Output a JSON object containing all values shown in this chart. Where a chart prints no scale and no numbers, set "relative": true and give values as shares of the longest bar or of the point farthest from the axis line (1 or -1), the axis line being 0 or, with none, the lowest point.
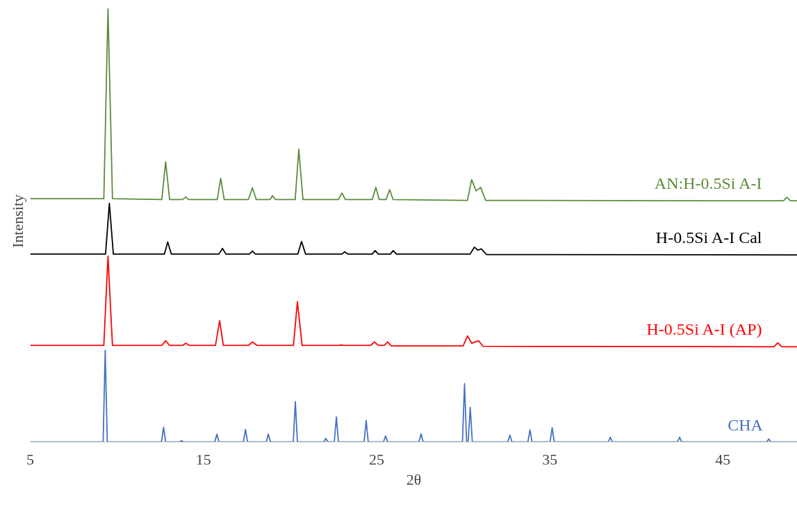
{
  "chart_data": {
    "type": "line",
    "xlabel": "2θ",
    "ylabel": "Intensity",
    "relative": true,
    "xlim": [
      5,
      49.3
    ],
    "xticks": [
      5,
      15,
      25,
      35,
      45
    ],
    "series": [
      {
        "name": "AN:H-0.5Si A-I",
        "color": "#5b8c3a",
        "x": [
          5,
          9.25,
          9.49,
          9.75,
          12.6,
          12.82,
          13.05,
          13.8,
          13.98,
          14.15,
          15.8,
          16.0,
          16.2,
          17.6,
          17.83,
          18.05,
          18.85,
          18.99,
          19.15,
          20.3,
          20.51,
          20.75,
          22.8,
          23.0,
          23.2,
          24.75,
          24.96,
          25.15,
          25.55,
          25.76,
          25.95,
          30.25,
          30.49,
          30.75,
          31.01,
          31.3,
          48.5,
          48.69,
          48.9,
          49.3
        ],
        "values": [
          0.562,
          0.562,
          1.0,
          0.562,
          0.56,
          0.647,
          0.56,
          0.56,
          0.566,
          0.56,
          0.56,
          0.609,
          0.56,
          0.56,
          0.587,
          0.56,
          0.56,
          0.569,
          0.56,
          0.56,
          0.676,
          0.56,
          0.56,
          0.575,
          0.56,
          0.56,
          0.588,
          0.56,
          0.56,
          0.583,
          0.56,
          0.558,
          0.606,
          0.58,
          0.588,
          0.558,
          0.557,
          0.565,
          0.557,
          0.557
        ]
      },
      {
        "name": "H-0.5Si A-I Cal",
        "color": "#000000",
        "x": [
          5,
          9.35,
          9.57,
          9.8,
          12.75,
          12.94,
          13.15,
          15.9,
          16.1,
          16.3,
          17.65,
          17.83,
          18.0,
          20.45,
          20.67,
          20.9,
          23.0,
          23.16,
          23.35,
          24.75,
          24.92,
          25.1,
          25.8,
          25.96,
          26.15,
          30.4,
          30.65,
          30.85,
          31.05,
          31.35,
          49.3
        ],
        "values": [
          0.434,
          0.434,
          0.551,
          0.434,
          0.434,
          0.462,
          0.434,
          0.434,
          0.447,
          0.434,
          0.434,
          0.441,
          0.434,
          0.434,
          0.463,
          0.434,
          0.434,
          0.439,
          0.434,
          0.434,
          0.442,
          0.434,
          0.434,
          0.442,
          0.434,
          0.434,
          0.45,
          0.443,
          0.446,
          0.433,
          0.432
        ]
      },
      {
        "name": "H-0.5Si A-I (AP)",
        "color": "#ff0000",
        "x": [
          5,
          9.25,
          9.49,
          9.75,
          12.6,
          12.82,
          13.05,
          13.8,
          13.98,
          14.2,
          15.7,
          15.94,
          16.15,
          17.6,
          17.83,
          18.1,
          20.2,
          20.43,
          20.7,
          22.8,
          22.96,
          23.15,
          24.65,
          24.88,
          25.1,
          25.45,
          25.64,
          25.85,
          30.0,
          30.25,
          30.5,
          30.89,
          31.15,
          47.95,
          48.17,
          48.4,
          49.3
        ],
        "values": [
          0.223,
          0.223,
          0.429,
          0.223,
          0.223,
          0.234,
          0.223,
          0.223,
          0.228,
          0.223,
          0.223,
          0.28,
          0.223,
          0.223,
          0.231,
          0.223,
          0.223,
          0.324,
          0.223,
          0.223,
          0.224,
          0.223,
          0.223,
          0.231,
          0.223,
          0.223,
          0.231,
          0.222,
          0.222,
          0.245,
          0.228,
          0.234,
          0.221,
          0.22,
          0.229,
          0.22,
          0.22
        ]
      },
      {
        "name": "CHA",
        "color": "#4472c4",
        "x": [
          5,
          9.21,
          9.33,
          9.45,
          12.58,
          12.7,
          12.82,
          13.62,
          13.74,
          13.86,
          15.66,
          15.78,
          15.9,
          17.31,
          17.43,
          17.55,
          18.63,
          18.75,
          18.87,
          20.19,
          20.31,
          20.43,
          21.95,
          22.07,
          22.19,
          22.56,
          22.68,
          22.8,
          24.28,
          24.4,
          24.52,
          25.4,
          25.52,
          25.64,
          27.45,
          27.57,
          27.69,
          29.96,
          30.08,
          30.2,
          30.29,
          30.41,
          30.53,
          32.58,
          32.7,
          32.82,
          33.74,
          33.86,
          33.98,
          35.02,
          35.14,
          35.26,
          38.38,
          38.5,
          38.62,
          42.38,
          42.5,
          42.62,
          47.53,
          47.65,
          47.77,
          49.3
        ],
        "values": [
          0,
          0,
          0.212,
          0,
          0,
          0.034,
          0,
          0,
          0.003,
          0,
          0,
          0.018,
          0,
          0,
          0.029,
          0,
          0,
          0.018,
          0,
          0,
          0.093,
          0,
          0,
          0.008,
          0,
          0,
          0.058,
          0,
          0,
          0.05,
          0,
          0,
          0.014,
          0,
          0,
          0.019,
          0,
          0,
          0.135,
          0,
          0,
          0.08,
          0,
          0,
          0.016,
          0,
          0,
          0.028,
          0,
          0,
          0.033,
          0,
          0,
          0.011,
          0,
          0,
          0.011,
          0,
          0,
          0.007,
          0,
          0
        ]
      }
    ]
  }
}
